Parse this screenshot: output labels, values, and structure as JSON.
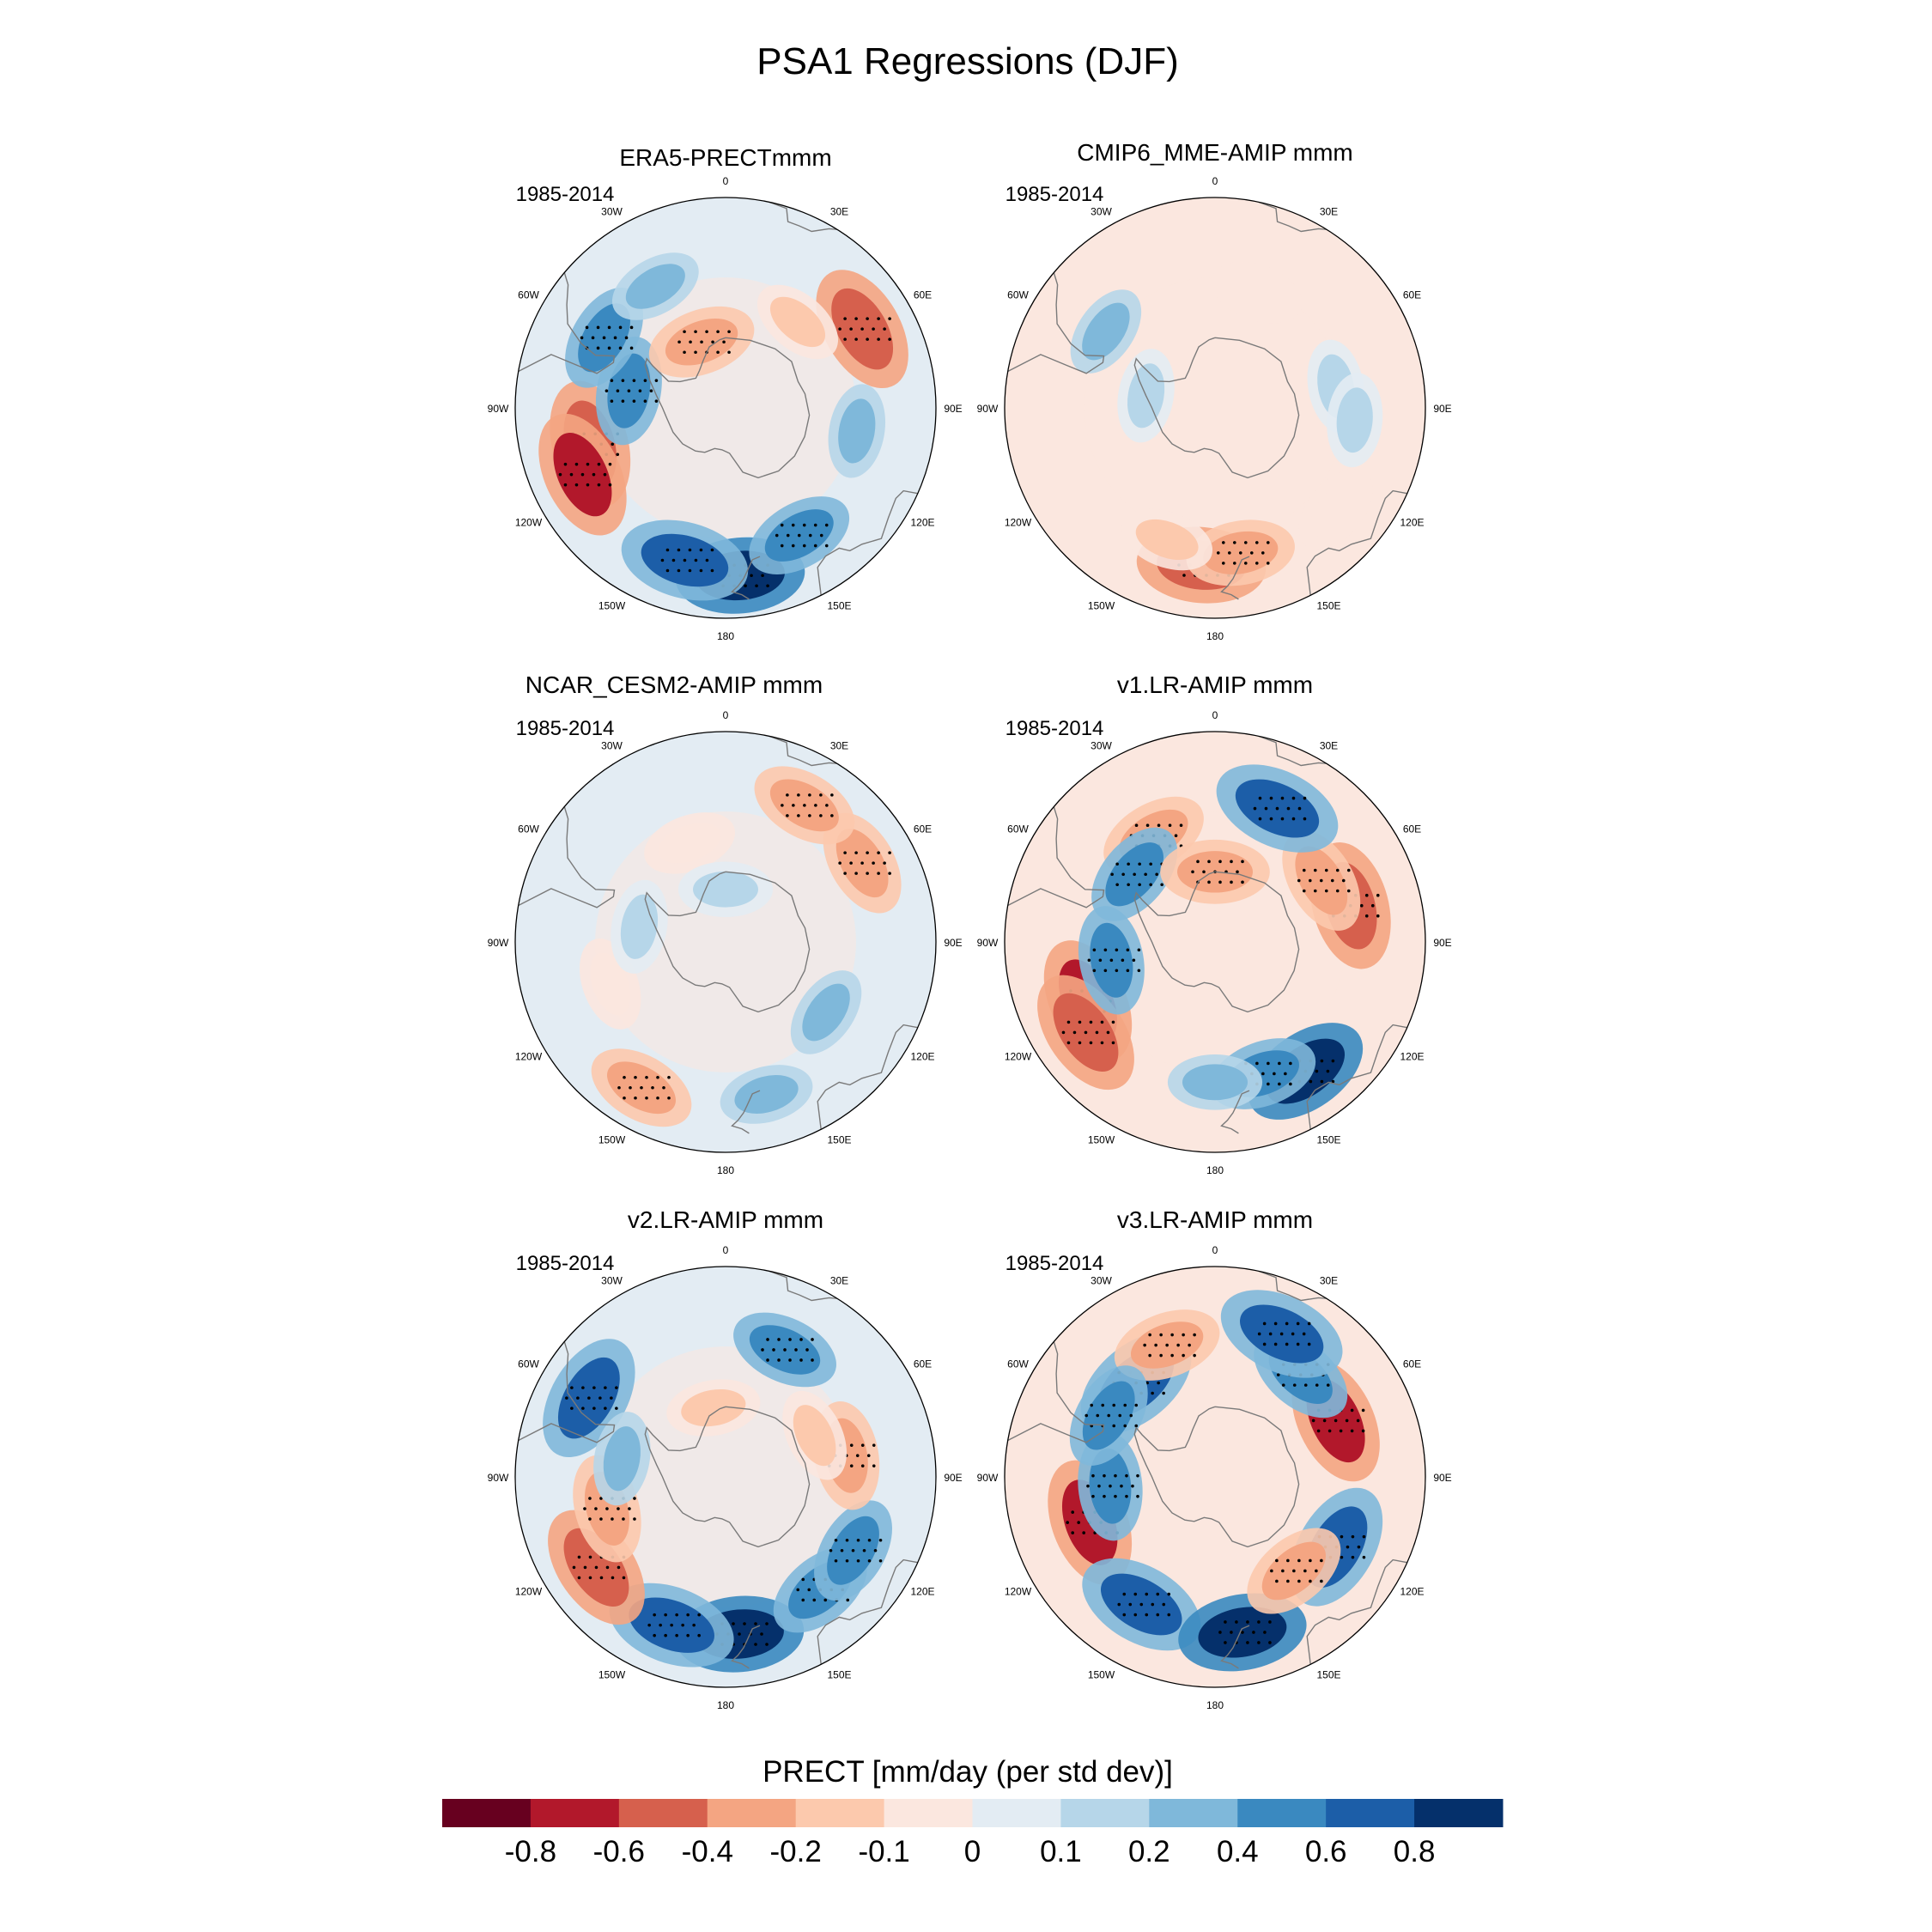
{
  "title": "PSA1 Regressions (DJF)",
  "chart_data": {
    "type": "heatmap",
    "projection": "south-polar-stereographic",
    "variable": "PRECT",
    "season": "DJF",
    "panels": [
      {
        "title": "ERA5-PRECTmmm",
        "period": "1985-2014",
        "anomalies": [
          {
            "lon": -105,
            "lat": -50,
            "value": -0.6
          },
          {
            "lon": -115,
            "lat": -45,
            "value": -0.8
          },
          {
            "lon": 175,
            "lat": -42,
            "value": 0.8
          },
          {
            "lon": -165,
            "lat": -45,
            "value": 0.6
          },
          {
            "lon": 150,
            "lat": -48,
            "value": 0.4
          },
          {
            "lon": 60,
            "lat": -45,
            "value": -0.6
          },
          {
            "lon": -80,
            "lat": -62,
            "value": 0.4
          },
          {
            "lon": -60,
            "lat": -50,
            "value": 0.4
          },
          {
            "lon": -30,
            "lat": -50,
            "value": 0.2
          },
          {
            "lon": -20,
            "lat": -70,
            "value": -0.4
          },
          {
            "lon": 40,
            "lat": -58,
            "value": -0.2
          },
          {
            "lon": 100,
            "lat": -52,
            "value": 0.2
          }
        ]
      },
      {
        "title": "CMIP6_MME-AMIP  mmm",
        "period": "1985-2014",
        "anomalies": [
          {
            "lon": -175,
            "lat": -45,
            "value": -0.6
          },
          {
            "lon": 170,
            "lat": -48,
            "value": -0.4
          },
          {
            "lon": -160,
            "lat": -50,
            "value": -0.2
          },
          {
            "lon": -55,
            "lat": -52,
            "value": 0.2
          },
          {
            "lon": 80,
            "lat": -55,
            "value": 0.1
          },
          {
            "lon": 95,
            "lat": -50,
            "value": 0.1
          },
          {
            "lon": -80,
            "lat": -70,
            "value": 0.1
          },
          {
            "lon": 130,
            "lat": -45,
            "value": -0.1
          },
          {
            "lon": 20,
            "lat": -55,
            "value": -0.1
          }
        ]
      },
      {
        "title": "NCAR_CESM2-AMIP  mmm",
        "period": "1985-2014",
        "anomalies": [
          {
            "lon": -110,
            "lat": -55,
            "value": -0.1
          },
          {
            "lon": -150,
            "lat": -42,
            "value": -0.4
          },
          {
            "lon": 165,
            "lat": -45,
            "value": 0.2
          },
          {
            "lon": 125,
            "lat": -55,
            "value": 0.2
          },
          {
            "lon": -80,
            "lat": -65,
            "value": 0.1
          },
          {
            "lon": 60,
            "lat": -45,
            "value": -0.4
          },
          {
            "lon": 30,
            "lat": -45,
            "value": -0.4
          },
          {
            "lon": -20,
            "lat": -60,
            "value": -0.1
          },
          {
            "lon": 0,
            "lat": -75,
            "value": 0.1
          }
        ]
      },
      {
        "title": "v1.LR-AMIP  mmm",
        "period": "1985-2014",
        "anomalies": [
          {
            "lon": -115,
            "lat": -50,
            "value": -0.8
          },
          {
            "lon": -125,
            "lat": -45,
            "value": -0.6
          },
          {
            "lon": 145,
            "lat": -45,
            "value": 0.8
          },
          {
            "lon": 160,
            "lat": -50,
            "value": 0.4
          },
          {
            "lon": -100,
            "lat": -60,
            "value": 0.4
          },
          {
            "lon": 75,
            "lat": -50,
            "value": -0.6
          },
          {
            "lon": 60,
            "lat": -55,
            "value": -0.4
          },
          {
            "lon": 25,
            "lat": -48,
            "value": 0.6
          },
          {
            "lon": -30,
            "lat": -55,
            "value": -0.4
          },
          {
            "lon": -50,
            "lat": -60,
            "value": 0.4
          },
          {
            "lon": 0,
            "lat": -70,
            "value": -0.4
          },
          {
            "lon": -180,
            "lat": -50,
            "value": 0.2
          }
        ]
      },
      {
        "title": "v2.LR-AMIP  mmm",
        "period": "1985-2014",
        "anomalies": [
          {
            "lon": 175,
            "lat": -45,
            "value": 0.8
          },
          {
            "lon": -160,
            "lat": -45,
            "value": 0.6
          },
          {
            "lon": 140,
            "lat": -48,
            "value": 0.4
          },
          {
            "lon": 120,
            "lat": -48,
            "value": 0.4
          },
          {
            "lon": -125,
            "lat": -45,
            "value": -0.6
          },
          {
            "lon": -105,
            "lat": -55,
            "value": -0.4
          },
          {
            "lon": 80,
            "lat": -55,
            "value": -0.4
          },
          {
            "lon": 65,
            "lat": -62,
            "value": -0.2
          },
          {
            "lon": 25,
            "lat": -50,
            "value": 0.4
          },
          {
            "lon": -60,
            "lat": -45,
            "value": 0.6
          },
          {
            "lon": -80,
            "lat": -60,
            "value": 0.2
          },
          {
            "lon": -10,
            "lat": -70,
            "value": -0.2
          }
        ]
      },
      {
        "title": "v3.LR-AMIP  mmm",
        "period": "1985-2014",
        "anomalies": [
          {
            "lon": -110,
            "lat": -52,
            "value": -0.8
          },
          {
            "lon": -95,
            "lat": -60,
            "value": 0.4
          },
          {
            "lon": -150,
            "lat": -48,
            "value": 0.6
          },
          {
            "lon": 170,
            "lat": -45,
            "value": 0.8
          },
          {
            "lon": 120,
            "lat": -50,
            "value": 0.6
          },
          {
            "lon": 140,
            "lat": -55,
            "value": -0.4
          },
          {
            "lon": 65,
            "lat": -52,
            "value": -0.8
          },
          {
            "lon": 40,
            "lat": -52,
            "value": 0.4
          },
          {
            "lon": 25,
            "lat": -45,
            "value": 0.6
          },
          {
            "lon": -40,
            "lat": -55,
            "value": 0.6
          },
          {
            "lon": -20,
            "lat": -50,
            "value": -0.4
          },
          {
            "lon": -60,
            "lat": -55,
            "value": 0.4
          }
        ]
      }
    ],
    "lon_labels": [
      "0",
      "30E",
      "60E",
      "90E",
      "120E",
      "150E",
      "180",
      "150W",
      "120W",
      "90W",
      "60W",
      "30W"
    ],
    "colorbar": {
      "title": "PRECT [mm/day (per std dev)]",
      "ticks": [
        "-0.8",
        "-0.6",
        "-0.4",
        "-0.2",
        "-0.1",
        "0",
        "0.1",
        "0.2",
        "0.4",
        "0.6",
        "0.8"
      ],
      "colors": [
        "#67001f",
        "#b2182b",
        "#d6604d",
        "#f4a582",
        "#fcc9ad",
        "#fbe7df",
        "#e3ecf3",
        "#b6d6e9",
        "#7fb8da",
        "#3a89c0",
        "#1c5ea8",
        "#05306b"
      ]
    }
  }
}
